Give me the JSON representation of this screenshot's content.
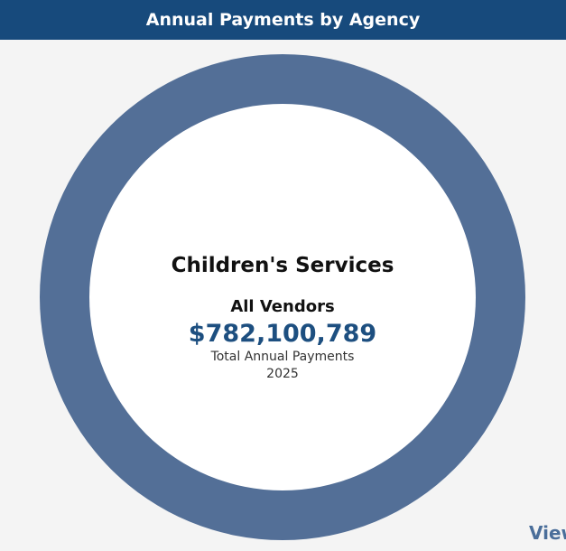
{
  "header": {
    "title": "Annual Payments by Agency"
  },
  "center": {
    "agency": "Children's Services",
    "vendor": "All Vendors",
    "amount": "$782,100,789",
    "caption": "Total Annual Payments",
    "year": "2025"
  },
  "link": {
    "view_label": "View"
  },
  "colors": {
    "header_bg": "#174a7c",
    "ring": "#536f97",
    "amount": "#1d4f80",
    "background": "#f4f4f4"
  },
  "chart_data": {
    "type": "pie",
    "series": [
      {
        "values": [
          782100789
        ]
      }
    ]
  }
}
